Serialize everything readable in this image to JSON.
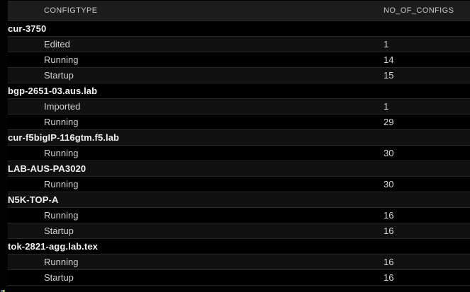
{
  "table": {
    "columns": [
      {
        "key": "configtype",
        "label": "CONFIGTYPE"
      },
      {
        "key": "no_of_configs",
        "label": "NO_OF_CONFIGS"
      }
    ],
    "groups": [
      {
        "device": "cur-3750",
        "rows": [
          {
            "configtype": "Edited",
            "no_of_configs": "1"
          },
          {
            "configtype": "Running",
            "no_of_configs": "14"
          },
          {
            "configtype": "Startup",
            "no_of_configs": "15"
          }
        ]
      },
      {
        "device": "bgp-2651-03.aus.lab",
        "rows": [
          {
            "configtype": "Imported",
            "no_of_configs": "1"
          },
          {
            "configtype": "Running",
            "no_of_configs": "29"
          }
        ]
      },
      {
        "device": "cur-f5bigIP-116gtm.f5.lab",
        "rows": [
          {
            "configtype": "Running",
            "no_of_configs": "30"
          }
        ]
      },
      {
        "device": "LAB-AUS-PA3020",
        "rows": [
          {
            "configtype": "Running",
            "no_of_configs": "30"
          }
        ]
      },
      {
        "device": "N5K-TOP-A",
        "rows": [
          {
            "configtype": "Running",
            "no_of_configs": "16"
          },
          {
            "configtype": "Startup",
            "no_of_configs": "16"
          }
        ]
      },
      {
        "device": "tok-2821-agg.lab.tex",
        "rows": [
          {
            "configtype": "Running",
            "no_of_configs": "16"
          },
          {
            "configtype": "Startup",
            "no_of_configs": "16"
          }
        ]
      }
    ]
  },
  "colors": {
    "page_bg": "#030303",
    "header_bg": "#1d1d1d",
    "row_bg": "#000000",
    "row_alt_bg": "#111111",
    "row_border": "#272727",
    "header_text": "#c8c8c8",
    "row_text": "#d2d2d2",
    "group_text": "#f2f2f2",
    "corner_pixels": [
      "#3b6db5",
      "#c93b2e",
      "#e8b73a",
      "#3f9750"
    ]
  }
}
